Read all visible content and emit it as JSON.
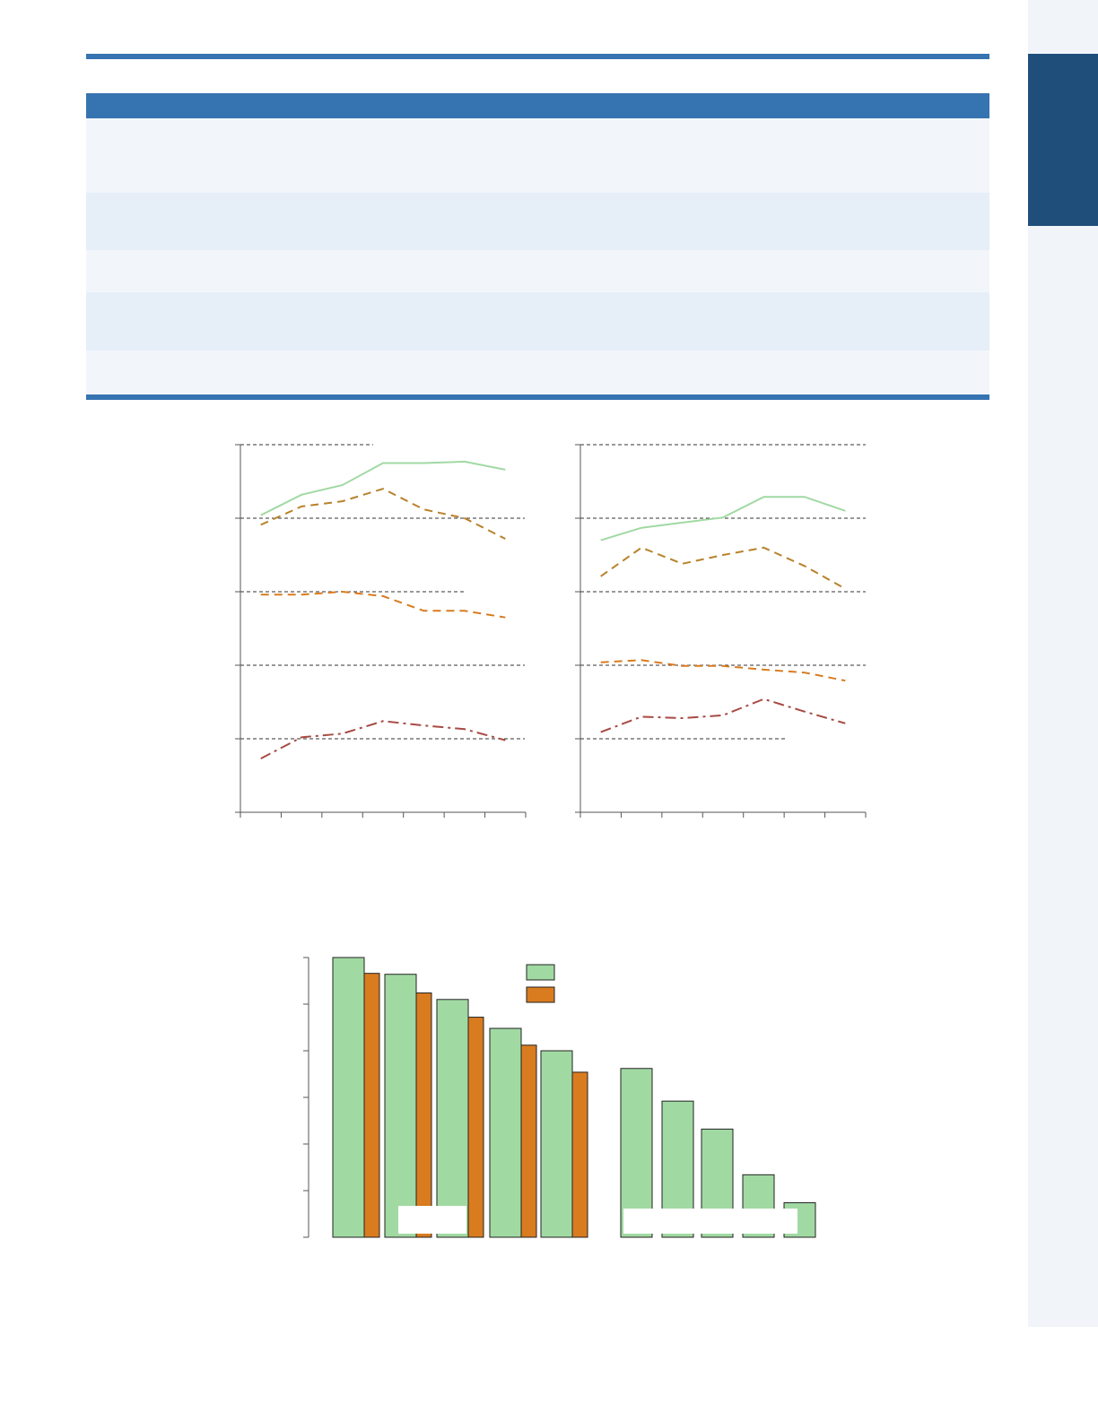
{
  "colors": {
    "accent": "#3673b1",
    "accent_dark": "#1f4e7b",
    "row_light": "#f2f6fb",
    "row_alt": "#e6eef8",
    "series_green": "#a1d9a3",
    "series_gold_dashed": "#b8822a",
    "series_orange_dashed": "#d97b1f",
    "series_red_dashdot": "#a84a44",
    "bar_green": "#a1d9a3",
    "bar_orange": "#d97b1f"
  },
  "table": {
    "rows": [
      {
        "fill": "#f2f6fb"
      },
      {
        "fill": "#e6eef8"
      },
      {
        "fill": "#f2f6fb"
      },
      {
        "fill": "#e6eef8"
      },
      {
        "fill": "#f2f6fb"
      }
    ]
  },
  "chart_data": [
    {
      "type": "line",
      "title": "",
      "xlabel": "",
      "ylabel": "",
      "x": [
        1,
        2,
        3,
        4,
        5,
        6,
        7
      ],
      "xlim": [
        0.5,
        7.5
      ],
      "ylim": [
        0,
        5
      ],
      "grid": "dashed-horizontal",
      "series": [
        {
          "style": "solid",
          "color": "#a1d9a3",
          "values": [
            4.04,
            4.32,
            4.45,
            4.75,
            4.75,
            4.77,
            4.66
          ]
        },
        {
          "style": "dashed",
          "color": "#b8822a",
          "values": [
            3.91,
            4.16,
            4.23,
            4.4,
            4.12,
            4.0,
            3.72
          ]
        },
        {
          "style": "dashed",
          "color": "#d97b1f",
          "values": [
            2.96,
            2.96,
            3.0,
            2.94,
            2.74,
            2.74,
            2.65
          ]
        },
        {
          "style": "dashdot",
          "color": "#a84a44",
          "values": [
            0.73,
            1.02,
            1.07,
            1.24,
            1.18,
            1.13,
            0.98
          ]
        }
      ]
    },
    {
      "type": "line",
      "title": "",
      "xlabel": "",
      "ylabel": "",
      "x": [
        1,
        2,
        3,
        4,
        5,
        6,
        7
      ],
      "xlim": [
        0.5,
        7.5
      ],
      "ylim": [
        0,
        5
      ],
      "grid": "dashed-horizontal",
      "series": [
        {
          "style": "solid",
          "color": "#a1d9a3",
          "values": [
            3.7,
            3.87,
            3.94,
            4.01,
            4.29,
            4.29,
            4.1
          ]
        },
        {
          "style": "dashed",
          "color": "#b8822a",
          "values": [
            3.21,
            3.6,
            3.38,
            3.5,
            3.6,
            3.35,
            3.04
          ]
        },
        {
          "style": "dashed",
          "color": "#d97b1f",
          "values": [
            2.04,
            2.07,
            1.99,
            1.99,
            1.94,
            1.9,
            1.79
          ]
        },
        {
          "style": "dashdot",
          "color": "#a84a44",
          "values": [
            1.09,
            1.3,
            1.28,
            1.32,
            1.54,
            1.37,
            1.21
          ]
        }
      ]
    },
    {
      "type": "bar",
      "title": "",
      "xlabel": "",
      "ylabel": "",
      "ylim": [
        0,
        6
      ],
      "legend_placement": "top-center",
      "groups": [
        {
          "green": 6.0,
          "orange": 5.66
        },
        {
          "green": 5.64,
          "orange": 5.24
        },
        {
          "green": 5.1,
          "orange": 4.72
        },
        {
          "green": 4.48,
          "orange": 4.12
        },
        {
          "green": 4.0,
          "orange": 3.54
        },
        {
          "green": 3.62,
          "orange": null
        },
        {
          "green": 2.92,
          "orange": null
        },
        {
          "green": 2.32,
          "orange": null
        },
        {
          "green": 1.34,
          "orange": null
        },
        {
          "green": 0.74,
          "orange": null
        }
      ]
    }
  ]
}
